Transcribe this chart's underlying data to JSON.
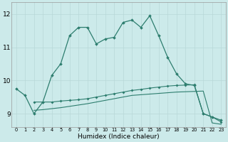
{
  "xlabel": "Humidex (Indice chaleur)",
  "bg_color": "#cceaea",
  "line_color": "#2d7d6e",
  "grid_color": "#b8d8d8",
  "x_ticks": [
    0,
    1,
    2,
    3,
    4,
    5,
    6,
    7,
    8,
    9,
    10,
    11,
    12,
    13,
    14,
    15,
    16,
    17,
    18,
    19,
    20,
    21,
    22,
    23
  ],
  "ylim": [
    8.6,
    12.35
  ],
  "yticks": [
    9,
    10,
    11,
    12
  ],
  "line1_x": [
    0,
    1,
    2,
    3,
    4,
    5,
    6,
    7,
    8,
    9,
    10,
    11,
    12,
    13,
    14,
    15,
    16,
    17,
    18,
    19,
    20,
    21,
    22,
    23
  ],
  "line1_y": [
    9.75,
    9.55,
    9.0,
    9.35,
    10.15,
    10.5,
    11.35,
    11.6,
    11.6,
    11.1,
    11.25,
    11.3,
    11.75,
    11.82,
    11.6,
    11.95,
    11.35,
    10.7,
    10.2,
    9.9,
    9.85,
    9.0,
    8.9,
    8.8
  ],
  "line2_x": [
    2,
    3,
    4,
    5,
    6,
    7,
    8,
    9,
    10,
    11,
    12,
    13,
    14,
    15,
    16,
    17,
    18,
    19,
    20,
    21,
    22,
    23
  ],
  "line2_y": [
    9.35,
    9.35,
    9.35,
    9.38,
    9.4,
    9.42,
    9.45,
    9.5,
    9.55,
    9.6,
    9.65,
    9.7,
    9.73,
    9.77,
    9.8,
    9.83,
    9.85,
    9.86,
    9.87,
    9.0,
    8.9,
    8.75
  ],
  "line3_x": [
    2,
    3,
    4,
    5,
    6,
    7,
    8,
    9,
    10,
    11,
    12,
    13,
    14,
    15,
    16,
    17,
    18,
    19,
    20,
    21,
    22,
    23
  ],
  "line3_y": [
    9.1,
    9.12,
    9.15,
    9.18,
    9.22,
    9.26,
    9.3,
    9.35,
    9.4,
    9.45,
    9.5,
    9.55,
    9.57,
    9.59,
    9.61,
    9.63,
    9.65,
    9.66,
    9.67,
    9.68,
    8.72,
    8.68
  ]
}
